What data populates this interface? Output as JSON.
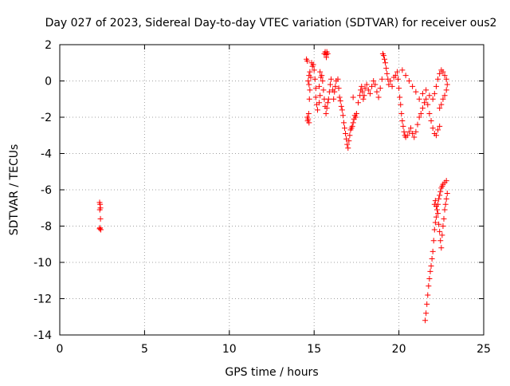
{
  "chart_data": {
    "type": "scatter",
    "title": "Day 027 of 2023, Sidereal Day-to-day VTEC variation (SDTVAR) for receiver ous2",
    "xlabel": "GPS time / hours",
    "ylabel": "SDTVAR / TECUs",
    "xlim": [
      0,
      25
    ],
    "ylim": [
      -14,
      2
    ],
    "xticks": [
      0,
      5,
      10,
      15,
      20,
      25
    ],
    "yticks": [
      2,
      0,
      -2,
      -4,
      -6,
      -8,
      -10,
      -12,
      -14
    ],
    "grid": true,
    "marker": "+",
    "color": "#ff0000",
    "series": [
      {
        "name": "SDTVAR",
        "points": [
          [
            2.35,
            -6.7
          ],
          [
            2.38,
            -6.8
          ],
          [
            2.4,
            -7.0
          ],
          [
            2.36,
            -7.1
          ],
          [
            2.4,
            -7.6
          ],
          [
            2.37,
            -8.1
          ],
          [
            2.42,
            -8.2
          ],
          [
            2.35,
            -8.15
          ],
          [
            14.6,
            -2.0
          ],
          [
            14.62,
            -2.2
          ],
          [
            14.65,
            -2.1
          ],
          [
            14.7,
            -2.3
          ],
          [
            14.68,
            -1.8
          ],
          [
            14.72,
            -1.0
          ],
          [
            14.75,
            -0.5
          ],
          [
            14.7,
            -0.2
          ],
          [
            14.65,
            0.0
          ],
          [
            14.7,
            0.3
          ],
          [
            14.75,
            0.5
          ],
          [
            14.8,
            0.2
          ],
          [
            14.9,
            0.8
          ],
          [
            14.85,
            1.0
          ],
          [
            14.6,
            1.1
          ],
          [
            14.55,
            1.2
          ],
          [
            14.95,
            0.9
          ],
          [
            15.0,
            0.6
          ],
          [
            15.05,
            0.1
          ],
          [
            15.1,
            -0.4
          ],
          [
            15.1,
            -0.9
          ],
          [
            15.15,
            -1.3
          ],
          [
            15.2,
            -1.6
          ],
          [
            15.3,
            -1.2
          ],
          [
            15.35,
            -0.8
          ],
          [
            15.3,
            -0.3
          ],
          [
            15.4,
            0.2
          ],
          [
            15.35,
            0.5
          ],
          [
            15.45,
            0.3
          ],
          [
            15.5,
            0.0
          ],
          [
            15.55,
            -0.5
          ],
          [
            15.6,
            -1.0
          ],
          [
            15.65,
            -1.4
          ],
          [
            15.7,
            -1.8
          ],
          [
            15.75,
            -1.5
          ],
          [
            15.8,
            -1.2
          ],
          [
            15.85,
            -1.0
          ],
          [
            15.9,
            -0.6
          ],
          [
            15.95,
            -0.2
          ],
          [
            16.0,
            0.1
          ],
          [
            15.6,
            1.5
          ],
          [
            15.65,
            1.6
          ],
          [
            15.7,
            1.45
          ],
          [
            15.75,
            1.6
          ],
          [
            15.8,
            1.5
          ],
          [
            15.72,
            1.3
          ],
          [
            16.1,
            -0.5
          ],
          [
            16.15,
            -1.0
          ],
          [
            16.2,
            -0.6
          ],
          [
            16.25,
            -0.3
          ],
          [
            16.3,
            0.0
          ],
          [
            16.4,
            0.1
          ],
          [
            16.45,
            -0.4
          ],
          [
            16.5,
            -0.9
          ],
          [
            16.55,
            -1.1
          ],
          [
            16.6,
            -1.4
          ],
          [
            16.65,
            -1.6
          ],
          [
            16.7,
            -1.9
          ],
          [
            16.75,
            -2.3
          ],
          [
            16.8,
            -2.6
          ],
          [
            16.85,
            -2.9
          ],
          [
            16.9,
            -3.2
          ],
          [
            16.95,
            -3.5
          ],
          [
            17.0,
            -3.7
          ],
          [
            17.05,
            -3.3
          ],
          [
            17.1,
            -3.0
          ],
          [
            17.15,
            -2.7
          ],
          [
            17.2,
            -2.6
          ],
          [
            17.25,
            -2.5
          ],
          [
            17.3,
            -2.3
          ],
          [
            17.35,
            -2.1
          ],
          [
            17.4,
            -1.9
          ],
          [
            17.45,
            -2.0
          ],
          [
            17.5,
            -1.8
          ],
          [
            17.3,
            -0.9
          ],
          [
            17.6,
            -1.2
          ],
          [
            17.7,
            -0.8
          ],
          [
            17.75,
            -0.5
          ],
          [
            17.8,
            -0.3
          ],
          [
            17.85,
            -0.6
          ],
          [
            17.9,
            -1.0
          ],
          [
            17.95,
            -0.8
          ],
          [
            18.0,
            -0.4
          ],
          [
            18.1,
            -0.2
          ],
          [
            18.2,
            -0.5
          ],
          [
            18.3,
            -0.7
          ],
          [
            18.4,
            -0.3
          ],
          [
            18.5,
            0.0
          ],
          [
            18.6,
            -0.2
          ],
          [
            18.7,
            -0.6
          ],
          [
            18.8,
            -0.9
          ],
          [
            18.9,
            -0.4
          ],
          [
            19.0,
            0.1
          ],
          [
            19.05,
            1.5
          ],
          [
            19.1,
            1.4
          ],
          [
            19.15,
            1.2
          ],
          [
            19.2,
            1.0
          ],
          [
            19.25,
            0.7
          ],
          [
            19.3,
            0.4
          ],
          [
            19.35,
            0.1
          ],
          [
            19.4,
            -0.2
          ],
          [
            19.5,
            0.0
          ],
          [
            19.6,
            -0.3
          ],
          [
            19.7,
            0.2
          ],
          [
            19.8,
            0.3
          ],
          [
            19.9,
            0.5
          ],
          [
            19.95,
            0.1
          ],
          [
            20.0,
            -0.4
          ],
          [
            20.05,
            -0.9
          ],
          [
            20.1,
            -1.3
          ],
          [
            20.15,
            -1.8
          ],
          [
            20.2,
            -2.2
          ],
          [
            20.25,
            -2.5
          ],
          [
            20.3,
            -2.8
          ],
          [
            20.35,
            -3.0
          ],
          [
            20.4,
            -3.1
          ],
          [
            20.5,
            -3.0
          ],
          [
            20.6,
            -2.8
          ],
          [
            20.7,
            -2.6
          ],
          [
            20.8,
            -2.9
          ],
          [
            20.9,
            -3.1
          ],
          [
            21.0,
            -2.8
          ],
          [
            21.1,
            -2.4
          ],
          [
            21.2,
            -2.0
          ],
          [
            21.3,
            -1.8
          ],
          [
            21.4,
            -1.5
          ],
          [
            21.5,
            -1.2
          ],
          [
            21.6,
            -1.0
          ],
          [
            21.7,
            -1.3
          ],
          [
            21.8,
            -1.8
          ],
          [
            21.9,
            -2.2
          ],
          [
            22.0,
            -2.6
          ],
          [
            22.1,
            -2.9
          ],
          [
            22.2,
            -3.0
          ],
          [
            22.3,
            -2.7
          ],
          [
            22.4,
            -2.5
          ],
          [
            20.2,
            0.6
          ],
          [
            20.4,
            0.3
          ],
          [
            20.6,
            0.0
          ],
          [
            20.8,
            -0.3
          ],
          [
            21.0,
            -0.6
          ],
          [
            21.2,
            -1.0
          ],
          [
            21.4,
            -0.7
          ],
          [
            21.6,
            -0.5
          ],
          [
            21.8,
            -0.8
          ],
          [
            22.0,
            -1.0
          ],
          [
            22.1,
            -0.7
          ],
          [
            22.2,
            -0.3
          ],
          [
            22.3,
            0.1
          ],
          [
            22.4,
            0.4
          ],
          [
            22.5,
            0.6
          ],
          [
            22.6,
            0.5
          ],
          [
            22.7,
            0.3
          ],
          [
            22.8,
            0.1
          ],
          [
            22.85,
            -0.2
          ],
          [
            22.8,
            -0.5
          ],
          [
            22.7,
            -0.8
          ],
          [
            22.6,
            -1.0
          ],
          [
            22.5,
            -1.3
          ],
          [
            22.4,
            -1.5
          ],
          [
            21.55,
            -13.2
          ],
          [
            21.6,
            -12.8
          ],
          [
            21.65,
            -12.3
          ],
          [
            21.7,
            -11.8
          ],
          [
            21.75,
            -11.3
          ],
          [
            21.8,
            -10.9
          ],
          [
            21.85,
            -10.5
          ],
          [
            21.9,
            -10.2
          ],
          [
            21.95,
            -9.8
          ],
          [
            22.0,
            -9.4
          ],
          [
            22.05,
            -8.8
          ],
          [
            22.1,
            -8.2
          ],
          [
            22.15,
            -7.8
          ],
          [
            22.2,
            -7.5
          ],
          [
            22.25,
            -7.1
          ],
          [
            22.3,
            -6.8
          ],
          [
            22.35,
            -6.5
          ],
          [
            22.4,
            -6.3
          ],
          [
            22.45,
            -6.1
          ],
          [
            22.5,
            -5.9
          ],
          [
            22.55,
            -5.8
          ],
          [
            22.6,
            -5.7
          ],
          [
            22.7,
            -5.6
          ],
          [
            22.8,
            -5.5
          ],
          [
            22.1,
            -6.8
          ],
          [
            22.15,
            -6.6
          ],
          [
            22.2,
            -6.9
          ],
          [
            22.3,
            -7.3
          ],
          [
            22.35,
            -7.9
          ],
          [
            22.4,
            -8.3
          ],
          [
            22.45,
            -8.8
          ],
          [
            22.5,
            -9.2
          ],
          [
            22.55,
            -8.5
          ],
          [
            22.6,
            -8.0
          ],
          [
            22.65,
            -7.6
          ],
          [
            22.7,
            -7.1
          ],
          [
            22.75,
            -6.8
          ],
          [
            22.8,
            -6.5
          ],
          [
            22.85,
            -6.2
          ]
        ]
      }
    ]
  }
}
